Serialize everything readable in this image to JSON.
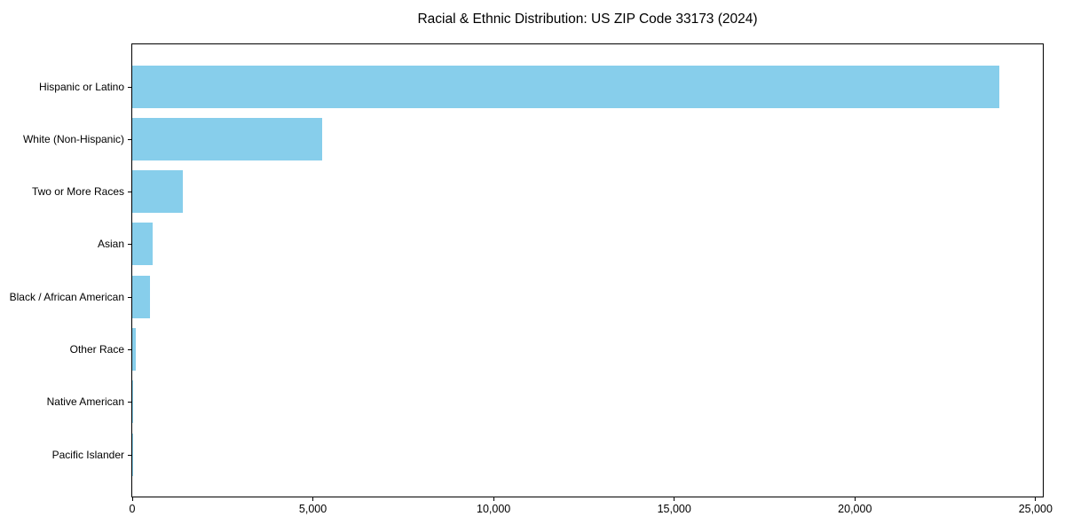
{
  "chart_data": {
    "type": "bar",
    "orientation": "horizontal",
    "title": "Racial & Ethnic Distribution: US ZIP Code 33173 (2024)",
    "categories": [
      "Hispanic or Latino",
      "White (Non-Hispanic)",
      "Two or More Races",
      "Asian",
      "Black / African American",
      "Other Race",
      "Native American",
      "Pacific Islander"
    ],
    "values": [
      24000,
      5250,
      1400,
      560,
      480,
      110,
      30,
      5
    ],
    "xlabel": "",
    "ylabel": "",
    "xlim": [
      0,
      25200
    ],
    "x_ticks": [
      0,
      5000,
      10000,
      15000,
      20000,
      25000
    ],
    "x_tick_labels": [
      "0",
      "5,000",
      "10,000",
      "15,000",
      "20,000",
      "25,000"
    ],
    "bar_color": "#87CEEB",
    "background_color": "#ffffff",
    "spine_color": "#000000",
    "grid": false,
    "legend": false
  }
}
